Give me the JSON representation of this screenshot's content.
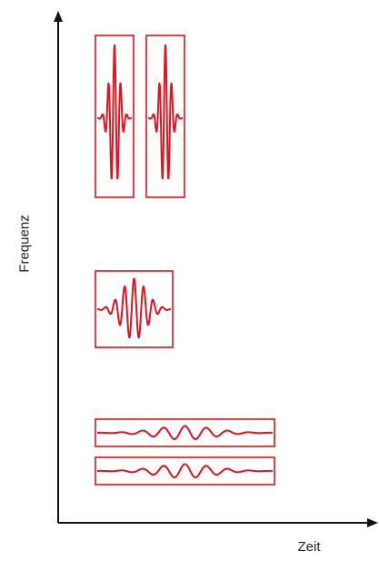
{
  "axes": {
    "x_label": "Zeit",
    "y_label": "Frequenz"
  },
  "colors": {
    "axis": "#111111",
    "wavelet": "#e0141e"
  },
  "atoms": [
    {
      "name": "tile-high-frequency-1",
      "kind": "high"
    },
    {
      "name": "tile-high-frequency-2",
      "kind": "high"
    },
    {
      "name": "tile-mid-frequency",
      "kind": "mid"
    },
    {
      "name": "tile-low-frequency-1",
      "kind": "low"
    },
    {
      "name": "tile-low-frequency-2",
      "kind": "low"
    }
  ]
}
